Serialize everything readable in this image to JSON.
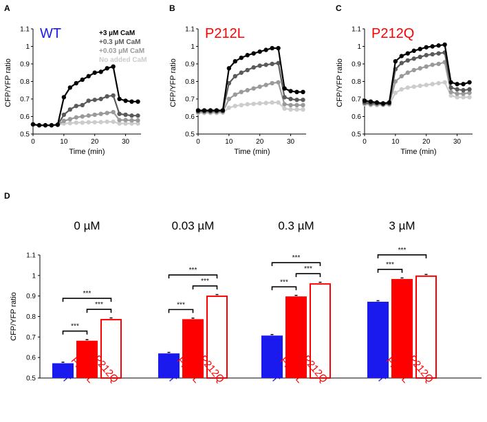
{
  "colors": {
    "wt": "#1a1aee",
    "mutant": "#ff0000",
    "cam_3": "#000000",
    "cam_0_3": "#5a5a5a",
    "cam_0_03": "#9a9a9a",
    "cam_0": "#cccccc"
  },
  "panel_letters": [
    "A",
    "B",
    "C",
    "D"
  ],
  "chart_data": [
    {
      "type": "line",
      "panel": "A",
      "title": "WT",
      "xlabel": "Time (min)",
      "ylabel": "CFP/YFP ratio",
      "xlim": [
        0,
        35
      ],
      "ylim": [
        0.5,
        1.1
      ],
      "xticks": [
        "0",
        "10",
        "20",
        "30"
      ],
      "yticks": [
        "0.5",
        "0.6",
        "0.7",
        "0.8",
        "0.9",
        "1",
        "1.1"
      ],
      "x": [
        0,
        2,
        4,
        6,
        8,
        10,
        12,
        14,
        16,
        18,
        20,
        22,
        24,
        26,
        28,
        30,
        32,
        34
      ],
      "series": [
        {
          "name": "+3 µM CaM",
          "values": [
            0.555,
            0.55,
            0.55,
            0.55,
            0.553,
            0.71,
            0.765,
            0.79,
            0.81,
            0.83,
            0.85,
            0.855,
            0.875,
            0.885,
            0.7,
            0.69,
            0.685,
            0.685
          ]
        },
        {
          "name": "+0.3 µM CaM",
          "values": [
            0.555,
            0.55,
            0.55,
            0.55,
            0.553,
            0.61,
            0.64,
            0.66,
            0.665,
            0.69,
            0.695,
            0.7,
            0.715,
            0.72,
            0.615,
            0.61,
            0.605,
            0.605
          ]
        },
        {
          "name": "+0.03 µM CaM",
          "values": [
            0.555,
            0.55,
            0.55,
            0.55,
            0.553,
            0.575,
            0.585,
            0.595,
            0.6,
            0.605,
            0.61,
            0.615,
            0.62,
            0.625,
            0.58,
            0.58,
            0.578,
            0.578
          ]
        },
        {
          "name": "No added CaM",
          "values": [
            0.555,
            0.55,
            0.55,
            0.55,
            0.553,
            0.56,
            0.562,
            0.565,
            0.565,
            0.567,
            0.567,
            0.568,
            0.57,
            0.57,
            0.56,
            0.56,
            0.56,
            0.56
          ]
        }
      ]
    },
    {
      "type": "line",
      "panel": "B",
      "title": "P212L",
      "xlabel": "Time (min)",
      "ylabel": "CFP/YFP ratio",
      "xlim": [
        0,
        35
      ],
      "ylim": [
        0.5,
        1.1
      ],
      "xticks": [
        "0",
        "10",
        "20",
        "30"
      ],
      "yticks": [
        "0.5",
        "0.6",
        "0.7",
        "0.8",
        "0.9",
        "1",
        "1.1"
      ],
      "x": [
        0,
        2,
        4,
        6,
        8,
        10,
        12,
        14,
        16,
        18,
        20,
        22,
        24,
        26,
        28,
        30,
        32,
        34
      ],
      "series": [
        {
          "name": "+3 µM CaM",
          "values": [
            0.635,
            0.635,
            0.635,
            0.635,
            0.635,
            0.875,
            0.915,
            0.935,
            0.95,
            0.96,
            0.97,
            0.98,
            0.99,
            0.99,
            0.76,
            0.745,
            0.74,
            0.74
          ]
        },
        {
          "name": "+0.3 µM CaM",
          "values": [
            0.63,
            0.63,
            0.63,
            0.63,
            0.632,
            0.79,
            0.83,
            0.85,
            0.865,
            0.88,
            0.89,
            0.895,
            0.9,
            0.905,
            0.71,
            0.7,
            0.695,
            0.695
          ]
        },
        {
          "name": "+0.03 µM CaM",
          "values": [
            0.625,
            0.625,
            0.625,
            0.625,
            0.627,
            0.7,
            0.725,
            0.74,
            0.75,
            0.76,
            0.77,
            0.78,
            0.79,
            0.795,
            0.67,
            0.665,
            0.665,
            0.665
          ]
        },
        {
          "name": "No added CaM",
          "values": [
            0.62,
            0.62,
            0.62,
            0.62,
            0.622,
            0.65,
            0.66,
            0.665,
            0.67,
            0.672,
            0.675,
            0.677,
            0.68,
            0.68,
            0.645,
            0.64,
            0.64,
            0.64
          ]
        }
      ]
    },
    {
      "type": "line",
      "panel": "C",
      "title": "P212Q",
      "xlabel": "Time (min)",
      "ylabel": "CFP/YFP ratio",
      "xlim": [
        0,
        35
      ],
      "ylim": [
        0.5,
        1.1
      ],
      "xticks": [
        "0",
        "10",
        "20",
        "30"
      ],
      "yticks": [
        "0.5",
        "0.6",
        "0.7",
        "0.8",
        "0.9",
        "1",
        "1.1"
      ],
      "x": [
        0,
        2,
        4,
        6,
        8,
        10,
        12,
        14,
        16,
        18,
        20,
        22,
        24,
        26,
        28,
        30,
        32,
        34
      ],
      "series": [
        {
          "name": "+3 µM CaM",
          "values": [
            0.69,
            0.685,
            0.68,
            0.675,
            0.68,
            0.915,
            0.945,
            0.96,
            0.975,
            0.985,
            0.995,
            1.0,
            1.005,
            1.01,
            0.795,
            0.785,
            0.785,
            0.795
          ]
        },
        {
          "name": "+0.3 µM CaM",
          "values": [
            0.68,
            0.675,
            0.675,
            0.67,
            0.675,
            0.87,
            0.905,
            0.92,
            0.93,
            0.94,
            0.95,
            0.955,
            0.96,
            0.965,
            0.765,
            0.755,
            0.75,
            0.755
          ]
        },
        {
          "name": "+0.03 µM CaM",
          "values": [
            0.675,
            0.67,
            0.67,
            0.67,
            0.672,
            0.8,
            0.83,
            0.85,
            0.865,
            0.875,
            0.885,
            0.895,
            0.9,
            0.91,
            0.74,
            0.73,
            0.73,
            0.735
          ]
        },
        {
          "name": "No added CaM",
          "values": [
            0.67,
            0.665,
            0.665,
            0.665,
            0.667,
            0.735,
            0.755,
            0.765,
            0.77,
            0.775,
            0.78,
            0.785,
            0.79,
            0.795,
            0.72,
            0.71,
            0.71,
            0.71
          ]
        }
      ]
    },
    {
      "type": "bar",
      "panel": "D",
      "ylabel": "CFP/YFP ratio",
      "ylim": [
        0.5,
        1.1
      ],
      "yticks": [
        "0.5",
        "0.6",
        "0.7",
        "0.8",
        "0.9",
        "1",
        "1.1"
      ],
      "significance_label": "***",
      "groups": [
        {
          "title": "0 µM",
          "categories": [
            "WT",
            "P212L",
            "P212Q"
          ],
          "values": [
            0.572,
            0.682,
            0.788
          ]
        },
        {
          "title": "0.03 µM",
          "categories": [
            "WT",
            "P212L",
            "P212Q"
          ],
          "values": [
            0.62,
            0.787,
            0.902
          ]
        },
        {
          "title": "0.3 µM",
          "categories": [
            "WT",
            "P212L",
            "P212Q"
          ],
          "values": [
            0.707,
            0.898,
            0.962
          ]
        },
        {
          "title": "3 µM",
          "categories": [
            "WT",
            "P212L",
            "P212Q"
          ],
          "values": [
            0.872,
            0.983,
            1.0
          ]
        }
      ],
      "comparisons": [
        {
          "group": 0,
          "pairs": [
            [
              0,
              1
            ],
            [
              1,
              2
            ],
            [
              0,
              2
            ]
          ]
        },
        {
          "group": 1,
          "pairs": [
            [
              0,
              1
            ],
            [
              1,
              2
            ],
            [
              0,
              2
            ]
          ]
        },
        {
          "group": 2,
          "pairs": [
            [
              0,
              1
            ],
            [
              1,
              2
            ],
            [
              0,
              2
            ]
          ]
        },
        {
          "group": 3,
          "pairs": [
            [
              0,
              1
            ],
            [
              0,
              2
            ]
          ]
        }
      ]
    }
  ]
}
